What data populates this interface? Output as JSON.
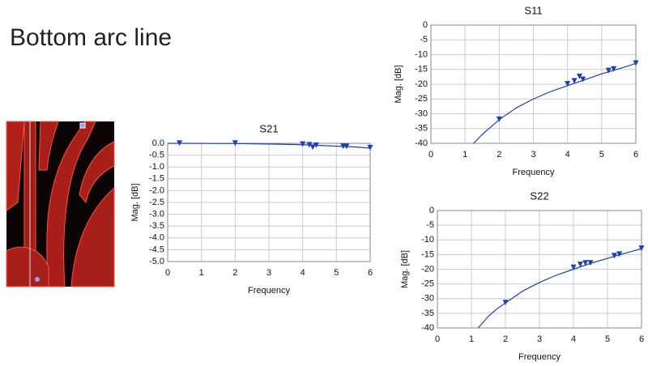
{
  "title": "Bottom arc line",
  "chart_data": [
    {
      "type": "line",
      "title": "S21",
      "xlabel": "Frequency",
      "ylabel": "Mag. [dB]",
      "xlim": [
        0,
        6
      ],
      "xticks": [
        0,
        1,
        2,
        3,
        4,
        5,
        6
      ],
      "ylim": [
        -5,
        0
      ],
      "yticks": [
        {
          "value": 0,
          "label": "0.0"
        },
        -0.5,
        {
          "value": -1,
          "label": "-1.0"
        },
        -1.5,
        {
          "value": -2,
          "label": "-2.0"
        },
        -2.5,
        {
          "value": -3,
          "label": "-3.0"
        },
        -3.5,
        {
          "value": -4,
          "label": "-4.0"
        },
        -4.5,
        {
          "value": -5,
          "label": "-5.0"
        }
      ],
      "grid": true,
      "x": [
        0,
        0.35,
        1,
        2,
        3,
        4,
        4.5,
        5,
        5.5,
        6
      ],
      "series": [
        {
          "color": "#1f3fb4",
          "values": [
            0,
            0,
            -0.005,
            -0.01,
            -0.03,
            -0.06,
            -0.09,
            -0.12,
            -0.15,
            -0.2
          ]
        }
      ],
      "markers": {
        "color": "#1f3fb4",
        "x": [
          0.35,
          2,
          4,
          4.2,
          4.3,
          4.4,
          5.2,
          5.3,
          6
        ],
        "values": [
          -0.01,
          -0.01,
          -0.05,
          -0.08,
          -0.18,
          -0.1,
          -0.14,
          -0.15,
          -0.2
        ]
      }
    },
    {
      "type": "line",
      "title": "S11",
      "xlabel": "Frequency",
      "ylabel": "Mag. [dB]",
      "xlim": [
        0,
        6
      ],
      "xticks": [
        0,
        1,
        2,
        3,
        4,
        5,
        6
      ],
      "ylim": [
        -40,
        0
      ],
      "yticks": [
        0,
        -5,
        -10,
        -15,
        -20,
        -25,
        -30,
        -35,
        -40
      ],
      "grid": true,
      "x": [
        1.25,
        1.5,
        1.75,
        2,
        2.5,
        3,
        3.5,
        4,
        4.5,
        5,
        5.5,
        6
      ],
      "series": [
        {
          "color": "#1f3fb4",
          "values": [
            -40,
            -37,
            -34.5,
            -32,
            -28,
            -25,
            -22.5,
            -20.5,
            -18.5,
            -16.5,
            -14.8,
            -13
          ]
        }
      ],
      "markers": {
        "color": "#1f3fb4",
        "x": [
          2,
          4,
          4.2,
          4.35,
          4.45,
          5.2,
          5.35,
          6
        ],
        "values": [
          -32,
          -20,
          -19,
          -17.5,
          -18.5,
          -15.5,
          -15,
          -13
        ]
      }
    },
    {
      "type": "line",
      "title": "S22",
      "xlabel": "Frequency",
      "ylabel": "Mag. [dB]",
      "xlim": [
        0,
        6
      ],
      "xticks": [
        0,
        1,
        2,
        3,
        4,
        5,
        6
      ],
      "ylim": [
        -40,
        0
      ],
      "yticks": [
        0,
        -5,
        -10,
        -15,
        -20,
        -25,
        -30,
        -35,
        -40
      ],
      "grid": true,
      "x": [
        1.2,
        1.5,
        1.75,
        2,
        2.5,
        3,
        3.5,
        4,
        4.5,
        5,
        5.5,
        6
      ],
      "series": [
        {
          "color": "#1f3fb4",
          "values": [
            -40,
            -36,
            -33.5,
            -31.5,
            -27.5,
            -24.5,
            -22,
            -20,
            -18,
            -16.3,
            -14.6,
            -13
          ]
        }
      ],
      "markers": {
        "color": "#1f3fb4",
        "x": [
          2,
          4,
          4.2,
          4.35,
          4.5,
          5.2,
          5.35,
          6
        ],
        "values": [
          -31.5,
          -19.5,
          -18.5,
          -18,
          -18,
          -15.5,
          -15,
          -13
        ]
      }
    }
  ]
}
